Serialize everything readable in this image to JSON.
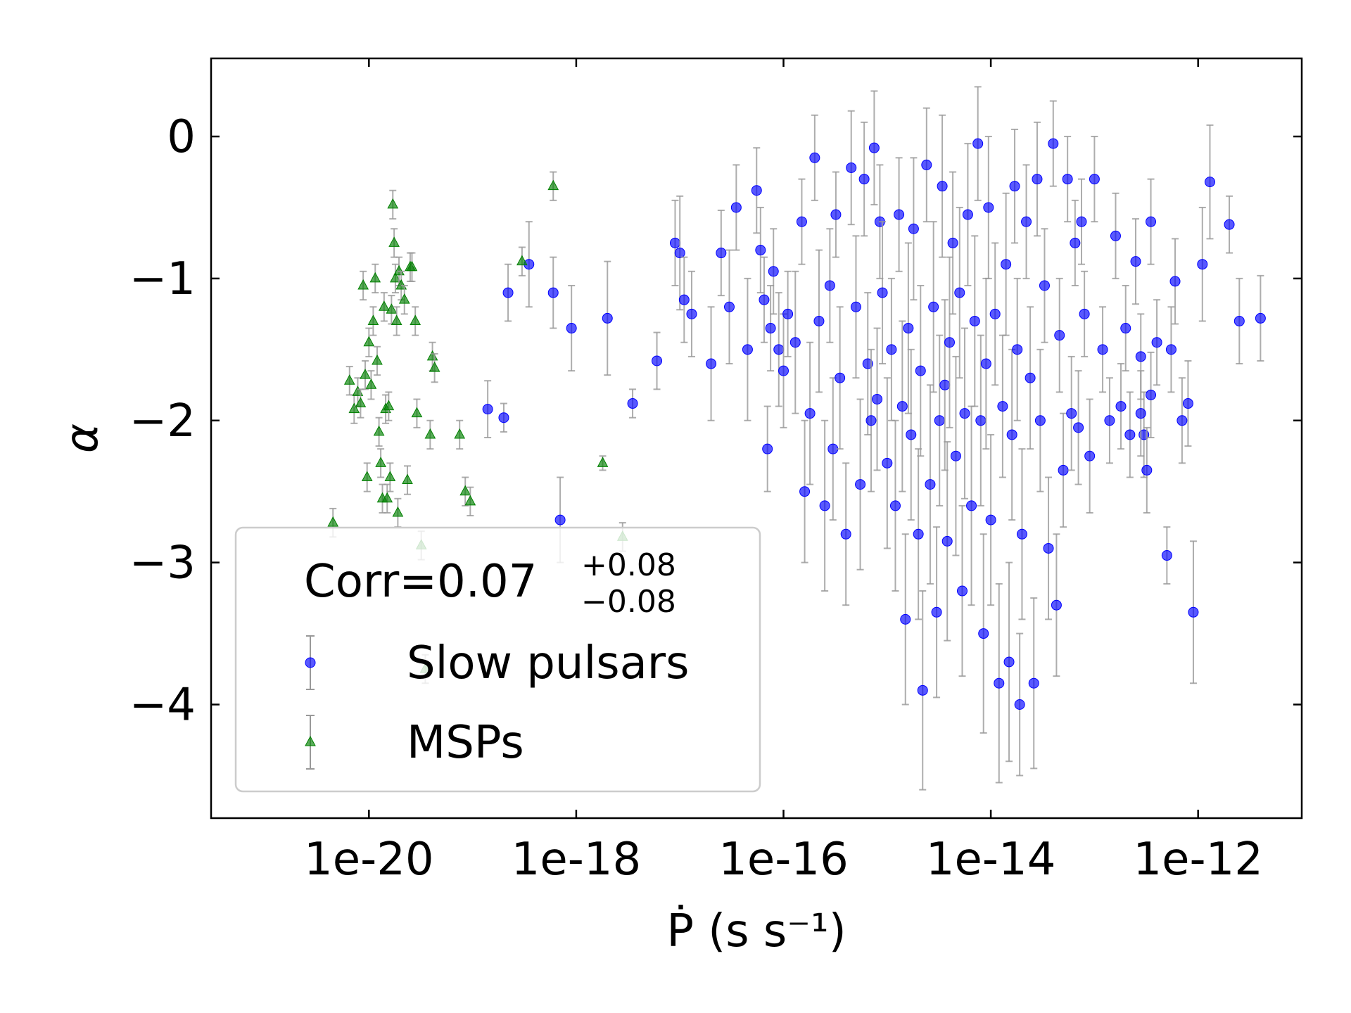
{
  "chart_data": {
    "type": "scatter",
    "title": "",
    "xlabel": "Ṗ (s s⁻¹)",
    "ylabel": "α",
    "xscale": "log",
    "xlim": [
      3e-22,
      1e-11
    ],
    "ylim": [
      -4.8,
      0.55
    ],
    "x_ticks": [
      1e-20,
      1e-18,
      1e-16,
      1e-14,
      1e-12
    ],
    "x_tick_labels": [
      "1e-20",
      "1e-18",
      "1e-16",
      "1e-14",
      "1e-12"
    ],
    "y_ticks": [
      0,
      -1,
      -2,
      -3,
      -4
    ],
    "y_tick_labels": [
      "0",
      "−1",
      "−2",
      "−3",
      "−4"
    ],
    "grid": false,
    "legend": {
      "placement": "lower-left",
      "corr_label": "Corr=0.07",
      "corr_upper": "+0.08",
      "corr_lower": "−0.08",
      "entries": [
        "Slow pulsars",
        "MSPs"
      ]
    },
    "series": [
      {
        "name": "Slow pulsars",
        "color": "#0000ff",
        "marker": "circle",
        "errorbar_color": "#999999",
        "points": [
          [
            2.2e-19,
            -1.1,
            0.2
          ],
          [
            3.5e-19,
            -0.9,
            0.3
          ],
          [
            6e-19,
            -1.1,
            0.25
          ],
          [
            9e-19,
            -1.35,
            0.3
          ],
          [
            2e-18,
            -1.28,
            0.4
          ],
          [
            3.5e-18,
            -1.88,
            0.1
          ],
          [
            6e-18,
            -1.58,
            0.2
          ],
          [
            2e-19,
            -1.98,
            0.1
          ],
          [
            1.4e-19,
            -1.92,
            0.2
          ],
          [
            7e-19,
            -2.7,
            0.3
          ],
          [
            9e-18,
            -0.75,
            0.3
          ],
          [
            1e-17,
            -0.82,
            0.4
          ],
          [
            1.1e-17,
            -1.15,
            0.3
          ],
          [
            1.3e-17,
            -1.25,
            0.3
          ],
          [
            2e-17,
            -1.6,
            0.4
          ],
          [
            2.5e-17,
            -0.82,
            0.3
          ],
          [
            3e-17,
            -1.2,
            0.4
          ],
          [
            3.5e-17,
            -0.5,
            0.3
          ],
          [
            4.5e-17,
            -1.5,
            0.5
          ],
          [
            5.5e-17,
            -0.38,
            0.3
          ],
          [
            6e-17,
            -0.8,
            0.3
          ],
          [
            6.5e-17,
            -1.15,
            0.3
          ],
          [
            7e-17,
            -2.2,
            0.3
          ],
          [
            7.5e-17,
            -1.35,
            0.3
          ],
          [
            8e-17,
            -0.95,
            0.3
          ],
          [
            9e-17,
            -1.5,
            0.4
          ],
          [
            1e-16,
            -1.65,
            0.4
          ],
          [
            1.1e-16,
            -1.25,
            0.3
          ],
          [
            1.3e-16,
            -1.45,
            0.5
          ],
          [
            1.5e-16,
            -0.6,
            0.3
          ],
          [
            1.6e-16,
            -2.5,
            0.5
          ],
          [
            1.8e-16,
            -1.95,
            0.5
          ],
          [
            2e-16,
            -0.15,
            0.3
          ],
          [
            2.2e-16,
            -1.3,
            0.5
          ],
          [
            2.5e-16,
            -2.6,
            0.6
          ],
          [
            2.8e-16,
            -1.05,
            0.4
          ],
          [
            3e-16,
            -2.2,
            0.5
          ],
          [
            3.2e-16,
            -0.55,
            0.3
          ],
          [
            3.5e-16,
            -1.7,
            0.5
          ],
          [
            4e-16,
            -2.8,
            0.5
          ],
          [
            4.5e-16,
            -0.22,
            0.4
          ],
          [
            5e-16,
            -1.2,
            0.5
          ],
          [
            5.5e-16,
            -2.45,
            0.6
          ],
          [
            6e-16,
            -0.3,
            0.4
          ],
          [
            6.5e-16,
            -1.6,
            0.5
          ],
          [
            7e-16,
            -2.0,
            0.5
          ],
          [
            7.5e-16,
            -0.08,
            0.4
          ],
          [
            8e-16,
            -1.85,
            0.5
          ],
          [
            8.5e-16,
            -0.6,
            0.4
          ],
          [
            9e-16,
            -1.1,
            0.5
          ],
          [
            1e-15,
            -2.3,
            0.6
          ],
          [
            1.1e-15,
            -1.5,
            0.5
          ],
          [
            1.2e-15,
            -2.6,
            0.6
          ],
          [
            1.3e-15,
            -0.55,
            0.4
          ],
          [
            1.4e-15,
            -1.9,
            0.6
          ],
          [
            1.5e-15,
            -3.4,
            0.6
          ],
          [
            1.6e-15,
            -1.35,
            0.6
          ],
          [
            1.7e-15,
            -2.1,
            0.6
          ],
          [
            1.8e-15,
            -0.65,
            0.5
          ],
          [
            2e-15,
            -2.8,
            0.6
          ],
          [
            2.1e-15,
            -1.65,
            0.6
          ],
          [
            2.2e-15,
            -3.9,
            0.7
          ],
          [
            2.4e-15,
            -0.2,
            0.4
          ],
          [
            2.6e-15,
            -2.45,
            0.7
          ],
          [
            2.8e-15,
            -1.2,
            0.6
          ],
          [
            3e-15,
            -3.35,
            0.6
          ],
          [
            3.2e-15,
            -2.0,
            0.6
          ],
          [
            3.4e-15,
            -0.35,
            0.5
          ],
          [
            3.6e-15,
            -1.75,
            0.6
          ],
          [
            3.8e-15,
            -2.85,
            0.7
          ],
          [
            4e-15,
            -1.45,
            0.6
          ],
          [
            4.3e-15,
            -0.75,
            0.5
          ],
          [
            4.6e-15,
            -2.25,
            0.7
          ],
          [
            5e-15,
            -1.1,
            0.6
          ],
          [
            5.3e-15,
            -3.2,
            0.6
          ],
          [
            5.6e-15,
            -1.95,
            0.6
          ],
          [
            6e-15,
            -0.55,
            0.5
          ],
          [
            6.5e-15,
            -2.6,
            0.7
          ],
          [
            7e-15,
            -1.3,
            0.6
          ],
          [
            7.5e-15,
            -0.05,
            0.4
          ],
          [
            8e-15,
            -2.0,
            0.6
          ],
          [
            8.5e-15,
            -3.5,
            0.7
          ],
          [
            9e-15,
            -1.6,
            0.6
          ],
          [
            9.5e-15,
            -0.5,
            0.5
          ],
          [
            1e-14,
            -2.7,
            0.6
          ],
          [
            1.1e-14,
            -1.25,
            0.5
          ],
          [
            1.2e-14,
            -3.85,
            0.7
          ],
          [
            1.3e-14,
            -1.9,
            0.5
          ],
          [
            1.4e-14,
            -0.9,
            0.5
          ],
          [
            1.5e-14,
            -3.7,
            0.7
          ],
          [
            1.6e-14,
            -2.1,
            0.6
          ],
          [
            1.7e-14,
            -0.35,
            0.4
          ],
          [
            1.8e-14,
            -1.5,
            0.5
          ],
          [
            1.9e-14,
            -4.0,
            0.5
          ],
          [
            2e-14,
            -2.8,
            0.6
          ],
          [
            2.2e-14,
            -0.6,
            0.4
          ],
          [
            2.4e-14,
            -1.7,
            0.5
          ],
          [
            2.6e-14,
            -3.85,
            0.6
          ],
          [
            2.8e-14,
            -0.3,
            0.4
          ],
          [
            3e-14,
            -2.0,
            0.5
          ],
          [
            3.3e-14,
            -1.05,
            0.4
          ],
          [
            3.6e-14,
            -2.9,
            0.5
          ],
          [
            4e-14,
            -0.05,
            0.3
          ],
          [
            4.3e-14,
            -3.3,
            0.5
          ],
          [
            4.6e-14,
            -1.4,
            0.4
          ],
          [
            5e-14,
            -2.35,
            0.4
          ],
          [
            5.5e-14,
            -0.3,
            0.3
          ],
          [
            6e-14,
            -1.95,
            0.4
          ],
          [
            6.5e-14,
            -0.75,
            0.3
          ],
          [
            7e-14,
            -2.05,
            0.4
          ],
          [
            7.5e-14,
            -0.6,
            0.3
          ],
          [
            8e-14,
            -1.25,
            0.3
          ],
          [
            9e-14,
            -2.25,
            0.4
          ],
          [
            1e-13,
            -0.3,
            0.3
          ],
          [
            1.2e-13,
            -1.5,
            0.3
          ],
          [
            1.4e-13,
            -2.0,
            0.3
          ],
          [
            1.6e-13,
            -0.7,
            0.3
          ],
          [
            1.8e-13,
            -1.9,
            0.3
          ],
          [
            2e-13,
            -1.35,
            0.3
          ],
          [
            2.2e-13,
            -2.1,
            0.3
          ],
          [
            2.5e-13,
            -0.88,
            0.3
          ],
          [
            2.8e-13,
            -1.55,
            0.3
          ],
          [
            3e-13,
            -2.1,
            0.3
          ],
          [
            3.5e-13,
            -0.6,
            0.3
          ],
          [
            4e-13,
            -1.45,
            0.3
          ],
          [
            5e-13,
            -2.95,
            0.2
          ],
          [
            6e-13,
            -1.02,
            0.3
          ],
          [
            8e-13,
            -1.88,
            0.3
          ],
          [
            9e-13,
            -3.35,
            0.5
          ],
          [
            1.1e-12,
            -0.9,
            0.4
          ],
          [
            1.3e-12,
            -0.32,
            0.4
          ],
          [
            2e-12,
            -0.62,
            0.2
          ],
          [
            2.5e-12,
            -1.3,
            0.3
          ],
          [
            4e-12,
            -1.28,
            0.3
          ],
          [
            3.5e-13,
            -1.82,
            0.3
          ],
          [
            5.5e-13,
            -1.5,
            0.3
          ],
          [
            7e-13,
            -2.0,
            0.3
          ],
          [
            2.8e-13,
            -1.95,
            0.3
          ],
          [
            3.2e-13,
            -2.35,
            0.3
          ]
        ]
      },
      {
        "name": "MSPs",
        "color": "#008000",
        "marker": "triangle",
        "errorbar_color": "#999999",
        "points": [
          [
            4.5e-21,
            -2.72,
            0.1
          ],
          [
            6.5e-21,
            -1.72,
            0.1
          ],
          [
            7.2e-21,
            -1.92,
            0.1
          ],
          [
            7.8e-21,
            -1.8,
            0.1
          ],
          [
            8.3e-21,
            -1.88,
            0.1
          ],
          [
            8.8e-21,
            -1.05,
            0.1
          ],
          [
            9.2e-21,
            -1.68,
            0.1
          ],
          [
            9.6e-21,
            -2.4,
            0.1
          ],
          [
            1e-20,
            -1.45,
            0.1
          ],
          [
            1.05e-20,
            -1.75,
            0.1
          ],
          [
            1.1e-20,
            -1.3,
            0.1
          ],
          [
            1.15e-20,
            -1.0,
            0.1
          ],
          [
            1.2e-20,
            -1.58,
            0.1
          ],
          [
            1.25e-20,
            -2.08,
            0.1
          ],
          [
            1.3e-20,
            -2.3,
            0.1
          ],
          [
            1.35e-20,
            -2.55,
            0.1
          ],
          [
            1.4e-20,
            -1.2,
            0.1
          ],
          [
            1.45e-20,
            -1.92,
            0.1
          ],
          [
            1.5e-20,
            -2.55,
            0.1
          ],
          [
            1.55e-20,
            -1.9,
            0.1
          ],
          [
            1.6e-20,
            -2.4,
            0.1
          ],
          [
            1.65e-20,
            -1.22,
            0.1
          ],
          [
            1.7e-20,
            -0.48,
            0.1
          ],
          [
            1.75e-20,
            -0.75,
            0.1
          ],
          [
            1.8e-20,
            -1.0,
            0.1
          ],
          [
            1.85e-20,
            -1.3,
            0.1
          ],
          [
            1.9e-20,
            -2.65,
            0.1
          ],
          [
            1.95e-20,
            -0.95,
            0.1
          ],
          [
            2.05e-20,
            -1.05,
            0.1
          ],
          [
            2.2e-20,
            -1.15,
            0.1
          ],
          [
            2.35e-20,
            -2.42,
            0.1
          ],
          [
            2.5e-20,
            -0.92,
            0.1
          ],
          [
            2.6e-20,
            -0.92,
            0.1
          ],
          [
            2.8e-20,
            -1.3,
            0.1
          ],
          [
            2.9e-20,
            -1.95,
            0.1
          ],
          [
            3.2e-20,
            -2.88,
            0.1
          ],
          [
            3.5e-20,
            -3.75,
            0.1
          ],
          [
            3.9e-20,
            -2.1,
            0.1
          ],
          [
            4.1e-20,
            -1.55,
            0.1
          ],
          [
            4.3e-20,
            -1.63,
            0.1
          ],
          [
            8.5e-20,
            -2.5,
            0.1
          ],
          [
            9.5e-20,
            -2.57,
            0.1
          ],
          [
            7.5e-20,
            -2.1,
            0.1
          ],
          [
            3e-19,
            -0.88,
            0.1
          ],
          [
            6e-19,
            -0.35,
            0.1
          ],
          [
            1.8e-18,
            -2.3,
            0.05
          ],
          [
            2.8e-18,
            -2.82,
            0.1
          ]
        ]
      }
    ]
  }
}
